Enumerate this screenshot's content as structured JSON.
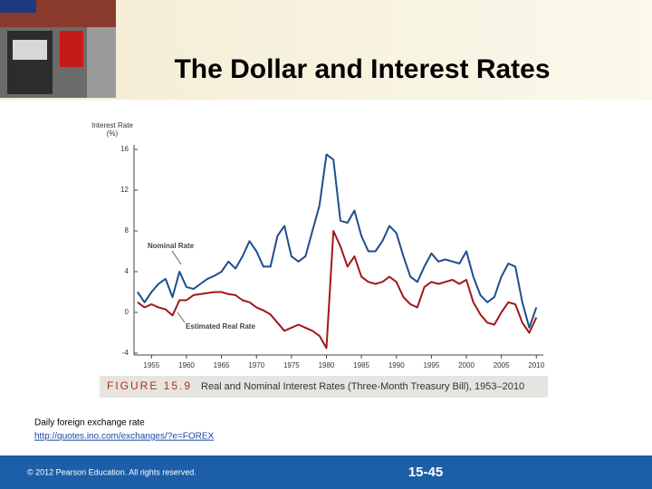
{
  "slide": {
    "title": "The Dollar and Interest Rates",
    "figure_number": "FIGURE 15.9",
    "figure_caption": "Real and Nominal Interest Rates (Three-Month Treasury Bill), 1953–2010",
    "note": "Daily foreign exchange rate",
    "link": "http://quotes.ino.com/exchanges/?e=FOREX",
    "copyright": "© 2012 Pearson Education. All rights reserved.",
    "page_number": "15-45"
  },
  "chart_data": {
    "type": "line",
    "ylabel": "Interest Rate (%)",
    "x": [
      1953,
      1954,
      1955,
      1956,
      1957,
      1958,
      1959,
      1960,
      1961,
      1962,
      1963,
      1964,
      1965,
      1966,
      1967,
      1968,
      1969,
      1970,
      1971,
      1972,
      1973,
      1974,
      1975,
      1976,
      1977,
      1978,
      1979,
      1980,
      1981,
      1982,
      1983,
      1984,
      1985,
      1986,
      1987,
      1988,
      1989,
      1990,
      1991,
      1992,
      1993,
      1994,
      1995,
      1996,
      1997,
      1998,
      1999,
      2000,
      2001,
      2002,
      2003,
      2004,
      2005,
      2006,
      2007,
      2008,
      2009,
      2010
    ],
    "series": [
      {
        "name": "Nominal Rate",
        "color": "#1f4e8c",
        "values": [
          2.0,
          1.0,
          2.0,
          2.8,
          3.3,
          1.5,
          4.0,
          2.5,
          2.3,
          2.8,
          3.3,
          3.6,
          4.0,
          5.0,
          4.3,
          5.5,
          7.0,
          6.0,
          4.5,
          4.5,
          7.5,
          8.5,
          5.5,
          5.0,
          5.5,
          8.0,
          10.5,
          15.5,
          15.0,
          9.0,
          8.8,
          10.0,
          7.5,
          6.0,
          6.0,
          7.0,
          8.5,
          7.8,
          5.5,
          3.5,
          3.0,
          4.5,
          5.8,
          5.0,
          5.2,
          5.0,
          4.8,
          6.0,
          3.5,
          1.7,
          1.0,
          1.5,
          3.5,
          4.8,
          4.5,
          1.0,
          -1.5,
          0.5
        ]
      },
      {
        "name": "Estimated Real Rate",
        "color": "#a01818",
        "values": [
          1.0,
          0.5,
          0.8,
          0.5,
          0.3,
          -0.3,
          1.2,
          1.2,
          1.7,
          1.8,
          1.9,
          2.0,
          2.0,
          1.8,
          1.7,
          1.2,
          1.0,
          0.5,
          0.2,
          -0.2,
          -1.0,
          -1.8,
          -1.5,
          -1.2,
          -1.5,
          -1.8,
          -2.3,
          -3.5,
          8.0,
          6.5,
          4.5,
          5.5,
          3.5,
          3.0,
          2.8,
          3.0,
          3.5,
          3.0,
          1.5,
          0.8,
          0.5,
          2.5,
          3.0,
          2.8,
          3.0,
          3.2,
          2.8,
          3.2,
          1.0,
          -0.2,
          -1.0,
          -1.2,
          0.0,
          1.0,
          0.8,
          -1.0,
          -2.0,
          -0.5
        ]
      }
    ],
    "xlim": [
      1952.5,
      2011
    ],
    "xticks": [
      1955,
      1960,
      1965,
      1970,
      1975,
      1980,
      1985,
      1990,
      1995,
      2000,
      2005,
      2010
    ],
    "ylim": [
      -4,
      16
    ],
    "yticks": [
      -4,
      0,
      4,
      8,
      12,
      16
    ],
    "grid": false
  }
}
